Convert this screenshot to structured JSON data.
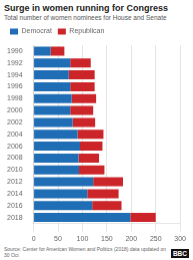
{
  "chart_data": {
    "type": "bar",
    "orientation": "horizontal",
    "stacked": true,
    "title": "Surge in women running for Congress",
    "subtitle": "Total number of women nominees for House and Senate",
    "source": "Source: Center for American Women and Politics (2018) data updated on 30 Oct",
    "annotations": [
      "BBC"
    ],
    "categories": [
      "1990",
      "1992",
      "1994",
      "1996",
      "1998",
      "2000",
      "2002",
      "2004",
      "2006",
      "2008",
      "2010",
      "2012",
      "2014",
      "2016",
      "2018"
    ],
    "series": [
      {
        "name": "Democrat",
        "color": "#1f6eb5",
        "values": [
          35,
          75,
          72,
          75,
          78,
          75,
          80,
          90,
          95,
          92,
          93,
          122,
          110,
          120,
          198
        ]
      },
      {
        "name": "Republican",
        "color": "#cc2529",
        "values": [
          28,
          42,
          53,
          50,
          50,
          47,
          46,
          53,
          46,
          42,
          52,
          61,
          64,
          60,
          52
        ]
      }
    ],
    "xlim": [
      0,
      300
    ],
    "xticks": [
      0,
      50,
      100,
      150,
      200,
      250,
      300
    ],
    "grid": true,
    "legend": "upper left"
  }
}
